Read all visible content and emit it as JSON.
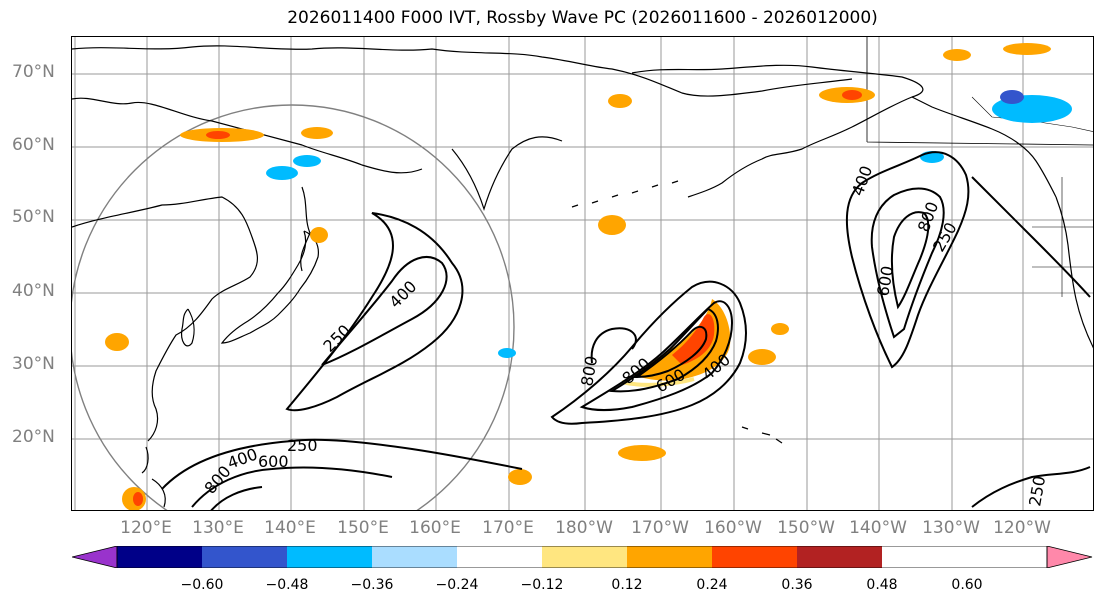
{
  "title": "2026011400 F000 IVT, Rossby Wave PC (2026011600 - 2026012000)",
  "lat_labels": [
    "70°N",
    "60°N",
    "50°N",
    "40°N",
    "30°N",
    "20°N"
  ],
  "lon_labels": [
    "120°E",
    "130°E",
    "140°E",
    "150°E",
    "160°E",
    "170°E",
    "180°W",
    "170°W",
    "160°W",
    "150°W",
    "140°W",
    "130°W",
    "120°W"
  ],
  "contour_labels": [
    "250",
    "400",
    "250",
    "400",
    "600",
    "800",
    "600",
    "400",
    "800",
    "800",
    "250",
    "400",
    "600",
    "800",
    "250"
  ],
  "colorbar": {
    "ticks": [
      "−0.60",
      "−0.48",
      "−0.36",
      "−0.24",
      "−0.12",
      "0.12",
      "0.24",
      "0.36",
      "0.48",
      "0.60"
    ],
    "colors": [
      "#9933cc",
      "#000088",
      "#3355cc",
      "#00bbff",
      "#aaddff",
      "#ffffff",
      "#ffe680",
      "#ffa500",
      "#ff4400",
      "#b22222",
      "#ff88aa"
    ]
  },
  "colors": {
    "pos_light": "#ffe680",
    "pos_mid": "#ffa500",
    "pos_strong": "#ff4400",
    "neg_light": "#aaddff",
    "neg_mid": "#00bbff",
    "neg_strong": "#3355cc",
    "neg_max": "#9933cc"
  }
}
